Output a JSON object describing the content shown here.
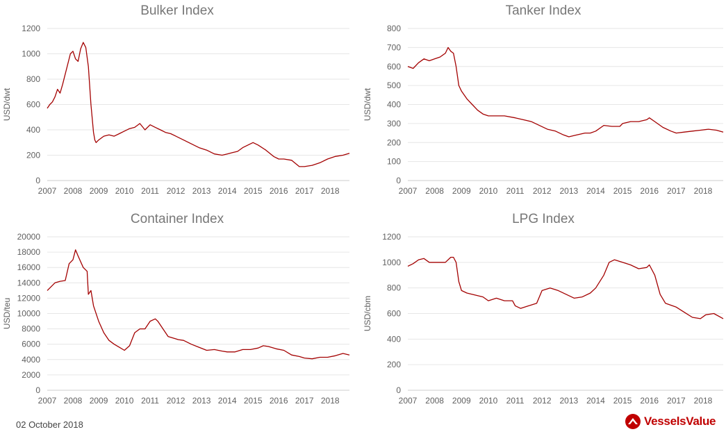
{
  "date": "02 October 2018",
  "brand": {
    "name": "VesselsValue",
    "color": "#c00000"
  },
  "colors": {
    "line": "#a30000",
    "grid": "#e6e6e6",
    "axis_text": "#606060",
    "title": "#777777"
  },
  "chart_data": [
    {
      "type": "line",
      "title": "Bulker Index",
      "ylabel": "USD/dwt",
      "xlabel": "",
      "ylim": [
        0,
        1200
      ],
      "yticks": [
        "0",
        "200",
        "400",
        "600",
        "800",
        "1000",
        "1200"
      ],
      "xlim": [
        2007,
        2018.75
      ],
      "xticks": [
        "2007",
        "2008",
        "2009",
        "2010",
        "2011",
        "2012",
        "2013",
        "2014",
        "2015",
        "2016",
        "2017",
        "2018"
      ],
      "grid": true,
      "series": [
        {
          "x": [
            2007.0,
            2007.1,
            2007.2,
            2007.3,
            2007.4,
            2007.5,
            2007.6,
            2007.7,
            2007.8,
            2007.9,
            2008.0,
            2008.1,
            2008.2,
            2008.3,
            2008.4,
            2008.5,
            2008.6,
            2008.7,
            2008.8,
            2008.85,
            2008.9,
            2009.0,
            2009.2,
            2009.4,
            2009.6,
            2009.8,
            2010.0,
            2010.2,
            2010.4,
            2010.6,
            2010.8,
            2011.0,
            2011.2,
            2011.4,
            2011.6,
            2011.8,
            2012.0,
            2012.3,
            2012.6,
            2012.9,
            2013.2,
            2013.5,
            2013.8,
            2014.0,
            2014.2,
            2014.4,
            2014.6,
            2014.8,
            2015.0,
            2015.2,
            2015.5,
            2015.8,
            2016.0,
            2016.2,
            2016.5,
            2016.8,
            2017.0,
            2017.3,
            2017.6,
            2017.9,
            2018.2,
            2018.5,
            2018.75
          ],
          "y": [
            570,
            600,
            620,
            660,
            720,
            690,
            760,
            840,
            920,
            1000,
            1020,
            960,
            940,
            1040,
            1090,
            1050,
            900,
            600,
            380,
            320,
            300,
            320,
            350,
            360,
            350,
            370,
            390,
            410,
            420,
            450,
            400,
            440,
            420,
            400,
            380,
            370,
            350,
            320,
            290,
            260,
            240,
            210,
            200,
            210,
            220,
            230,
            260,
            280,
            300,
            280,
            240,
            190,
            170,
            170,
            160,
            110,
            110,
            120,
            140,
            170,
            190,
            200,
            215
          ]
        }
      ]
    },
    {
      "type": "line",
      "title": "Tanker Index",
      "ylabel": "USD/dwt",
      "xlabel": "",
      "ylim": [
        0,
        800
      ],
      "yticks": [
        "0",
        "100",
        "200",
        "300",
        "400",
        "500",
        "600",
        "700",
        "800"
      ],
      "xlim": [
        2007,
        2018.75
      ],
      "xticks": [
        "2007",
        "2008",
        "2009",
        "2010",
        "2011",
        "2012",
        "2013",
        "2014",
        "2015",
        "2016",
        "2017",
        "2018"
      ],
      "grid": true,
      "series": [
        {
          "x": [
            2007.0,
            2007.2,
            2007.4,
            2007.6,
            2007.8,
            2008.0,
            2008.2,
            2008.4,
            2008.5,
            2008.6,
            2008.7,
            2008.8,
            2008.9,
            2009.0,
            2009.2,
            2009.4,
            2009.6,
            2009.8,
            2010.0,
            2010.3,
            2010.6,
            2011.0,
            2011.3,
            2011.6,
            2011.9,
            2012.2,
            2012.5,
            2012.8,
            2013.0,
            2013.3,
            2013.6,
            2013.8,
            2014.0,
            2014.3,
            2014.6,
            2014.9,
            2015.0,
            2015.3,
            2015.6,
            2015.9,
            2016.0,
            2016.2,
            2016.5,
            2016.8,
            2017.0,
            2017.3,
            2017.6,
            2017.9,
            2018.2,
            2018.5,
            2018.75
          ],
          "y": [
            600,
            590,
            620,
            640,
            630,
            640,
            650,
            670,
            700,
            680,
            670,
            600,
            500,
            470,
            430,
            400,
            370,
            350,
            340,
            340,
            340,
            330,
            320,
            310,
            290,
            270,
            260,
            240,
            230,
            240,
            250,
            250,
            260,
            290,
            285,
            285,
            300,
            310,
            310,
            320,
            330,
            310,
            280,
            260,
            250,
            255,
            260,
            265,
            270,
            265,
            255
          ]
        }
      ]
    },
    {
      "type": "line",
      "title": "Container Index",
      "ylabel": "USD/teu",
      "xlabel": "",
      "ylim": [
        0,
        20000
      ],
      "yticks": [
        "0",
        "2000",
        "4000",
        "6000",
        "8000",
        "10000",
        "12000",
        "14000",
        "16000",
        "18000",
        "20000"
      ],
      "xlim": [
        2007,
        2018.75
      ],
      "xticks": [
        "2007",
        "2008",
        "2009",
        "2010",
        "2011",
        "2012",
        "2013",
        "2014",
        "2015",
        "2016",
        "2017",
        "2018"
      ],
      "grid": true,
      "series": [
        {
          "x": [
            2007.0,
            2007.15,
            2007.3,
            2007.5,
            2007.7,
            2007.85,
            2008.0,
            2008.1,
            2008.2,
            2008.4,
            2008.55,
            2008.6,
            2008.7,
            2008.8,
            2009.0,
            2009.2,
            2009.4,
            2009.6,
            2009.8,
            2010.0,
            2010.2,
            2010.4,
            2010.6,
            2010.8,
            2011.0,
            2011.2,
            2011.3,
            2011.5,
            2011.7,
            2011.9,
            2012.1,
            2012.3,
            2012.6,
            2012.9,
            2013.2,
            2013.5,
            2013.8,
            2014.0,
            2014.3,
            2014.6,
            2014.9,
            2015.2,
            2015.4,
            2015.6,
            2015.9,
            2016.2,
            2016.5,
            2016.8,
            2017.0,
            2017.3,
            2017.6,
            2017.9,
            2018.2,
            2018.5,
            2018.75
          ],
          "y": [
            13000,
            13500,
            14000,
            14200,
            14300,
            16500,
            17000,
            18300,
            17500,
            16000,
            15500,
            12500,
            13000,
            11000,
            9000,
            7500,
            6500,
            6000,
            5600,
            5200,
            5800,
            7500,
            8000,
            8000,
            9000,
            9300,
            9000,
            8000,
            7000,
            6800,
            6600,
            6500,
            6000,
            5600,
            5200,
            5300,
            5100,
            5000,
            5000,
            5300,
            5300,
            5500,
            5800,
            5700,
            5400,
            5200,
            4600,
            4400,
            4200,
            4100,
            4300,
            4300,
            4500,
            4800,
            4600
          ]
        }
      ]
    },
    {
      "type": "line",
      "title": "LPG Index",
      "ylabel": "USD/cbm",
      "xlabel": "",
      "ylim": [
        0,
        1200
      ],
      "yticks": [
        "0",
        "200",
        "400",
        "600",
        "800",
        "1000",
        "1200"
      ],
      "xlim": [
        2007,
        2018.75
      ],
      "xticks": [
        "2007",
        "2008",
        "2009",
        "2010",
        "2011",
        "2012",
        "2013",
        "2014",
        "2015",
        "2016",
        "2017",
        "2018"
      ],
      "grid": true,
      "series": [
        {
          "x": [
            2007.0,
            2007.2,
            2007.4,
            2007.6,
            2007.8,
            2008.0,
            2008.2,
            2008.4,
            2008.6,
            2008.7,
            2008.8,
            2008.9,
            2009.0,
            2009.2,
            2009.4,
            2009.6,
            2009.8,
            2010.0,
            2010.3,
            2010.6,
            2010.9,
            2011.0,
            2011.2,
            2011.5,
            2011.8,
            2012.0,
            2012.3,
            2012.6,
            2012.9,
            2013.2,
            2013.5,
            2013.8,
            2014.0,
            2014.3,
            2014.5,
            2014.7,
            2015.0,
            2015.3,
            2015.6,
            2015.9,
            2016.0,
            2016.2,
            2016.4,
            2016.6,
            2017.0,
            2017.3,
            2017.6,
            2017.9,
            2018.1,
            2018.4,
            2018.75
          ],
          "y": [
            970,
            990,
            1020,
            1030,
            1000,
            1000,
            1000,
            1000,
            1040,
            1040,
            1000,
            850,
            780,
            760,
            750,
            740,
            730,
            700,
            720,
            700,
            700,
            660,
            640,
            660,
            680,
            780,
            800,
            780,
            750,
            720,
            730,
            760,
            800,
            900,
            1000,
            1020,
            1000,
            980,
            950,
            960,
            980,
            900,
            750,
            680,
            650,
            610,
            570,
            560,
            590,
            600,
            560
          ]
        }
      ]
    }
  ]
}
